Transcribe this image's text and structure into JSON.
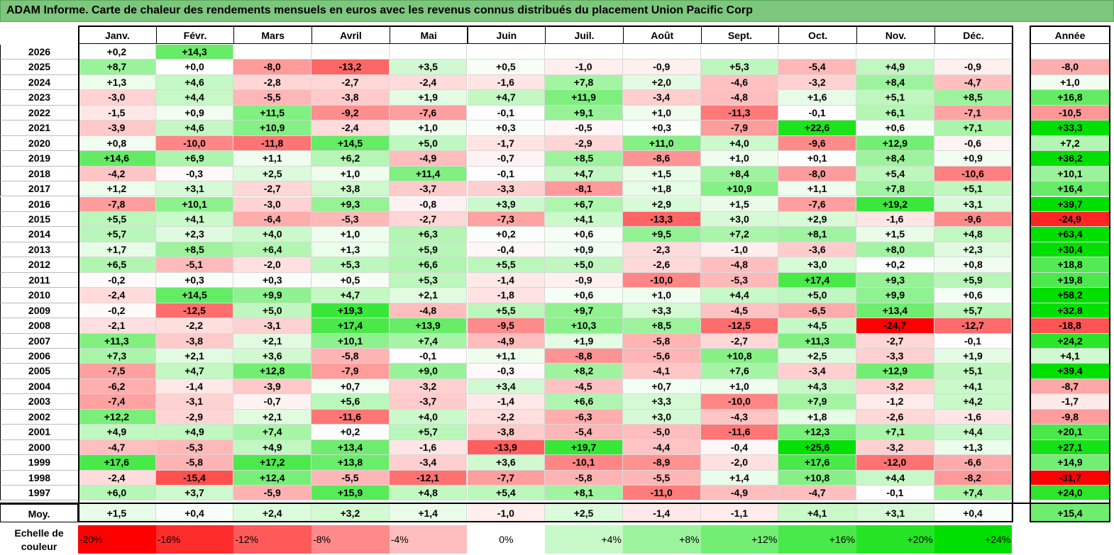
{
  "title": "ADAM Informe. Carte de chaleur des rendements mensuels en euros avec les revenus connus distribués du placement Union Pacific Corp",
  "colors": {
    "neg_max": "#ff0000",
    "zero": "#ffffff",
    "pos_max": "#00e000",
    "title_bg": "#7dc67d"
  },
  "chart_data": {
    "type": "heatmap",
    "title": "ADAM Informe. Carte de chaleur des rendements mensuels en euros avec les revenus connus distribués du placement Union Pacific Corp",
    "months": [
      "Janv.",
      "Févr.",
      "Mars",
      "Avril",
      "Mai",
      "Juin",
      "Juil.",
      "Août",
      "Sept.",
      "Oct.",
      "Nov.",
      "Déc."
    ],
    "year_col_label": "Année",
    "rows": [
      {
        "year": "2026",
        "values": [
          "+0,2",
          "+14,3",
          "",
          "",
          "",
          "",
          "",
          "",
          "",
          "",
          "",
          ""
        ],
        "annual": ""
      },
      {
        "year": "2025",
        "values": [
          "+8,7",
          "+0,0",
          "-8,0",
          "-13,2",
          "+3,5",
          "+0,5",
          "-1,0",
          "-0,9",
          "+5,3",
          "-5,4",
          "+4,9",
          "-0,9"
        ],
        "annual": "-8,0"
      },
      {
        "year": "2024",
        "values": [
          "+1,3",
          "+4,6",
          "-2,8",
          "-2,7",
          "-2,4",
          "-1,6",
          "+7,8",
          "+2,0",
          "-4,6",
          "-3,2",
          "+8,4",
          "-4,7"
        ],
        "annual": "+1,0"
      },
      {
        "year": "2023",
        "values": [
          "-3,0",
          "+4,4",
          "-5,5",
          "-3,8",
          "+1,9",
          "+4,7",
          "+11,9",
          "-3,4",
          "-4,8",
          "+1,6",
          "+5,1",
          "+8,5"
        ],
        "annual": "+16,8"
      },
      {
        "year": "2022",
        "values": [
          "-1,5",
          "+0,9",
          "+11,5",
          "-9,2",
          "-7,6",
          "-0,1",
          "+9,1",
          "+1,0",
          "-11,3",
          "-0,1",
          "+6,1",
          "-7,1"
        ],
        "annual": "-10,5"
      },
      {
        "year": "2021",
        "values": [
          "-3,9",
          "+4,6",
          "+10,9",
          "-2,4",
          "+1,0",
          "+0,3",
          "-0,5",
          "+0,3",
          "-7,9",
          "+22,6",
          "+0,6",
          "+7,1"
        ],
        "annual": "+33,3"
      },
      {
        "year": "2020",
        "values": [
          "+0,8",
          "-10,0",
          "-11,8",
          "+14,5",
          "+5,0",
          "-1,7",
          "-2,9",
          "+11,0",
          "+4,0",
          "-9,6",
          "+12,9",
          "-0,6"
        ],
        "annual": "+7,2"
      },
      {
        "year": "2019",
        "values": [
          "+14,6",
          "+6,9",
          "+1,1",
          "+6,2",
          "-4,9",
          "-0,7",
          "+8,5",
          "-8,6",
          "+1,0",
          "+0,1",
          "+8,4",
          "+0,9"
        ],
        "annual": "+36,2"
      },
      {
        "year": "2018",
        "values": [
          "-4,2",
          "-0,3",
          "+2,5",
          "+1,0",
          "+11,4",
          "-0,1",
          "+4,7",
          "+1,5",
          "+8,4",
          "-8,0",
          "+5,4",
          "-10,6"
        ],
        "annual": "+10,1"
      },
      {
        "year": "2017",
        "values": [
          "+1,2",
          "+3,1",
          "-2,7",
          "+3,8",
          "-3,7",
          "-3,3",
          "-8,1",
          "+1,8",
          "+10,9",
          "+1,1",
          "+7,8",
          "+5,1"
        ],
        "annual": "+16,4"
      },
      {
        "year": "2016",
        "values": [
          "-7,8",
          "+10,1",
          "-3,0",
          "+9,3",
          "-0,8",
          "+3,9",
          "+6,7",
          "+2,9",
          "+1,5",
          "-7,6",
          "+19,2",
          "+3,1"
        ],
        "annual": "+39,7"
      },
      {
        "year": "2015",
        "values": [
          "+5,5",
          "+4,1",
          "-6,4",
          "-5,3",
          "-2,7",
          "-7,3",
          "+4,1",
          "-13,3",
          "+3,0",
          "+2,9",
          "-1,6",
          "-9,6"
        ],
        "annual": "-24,9"
      },
      {
        "year": "2014",
        "values": [
          "+5,7",
          "+2,3",
          "+4,0",
          "+1,0",
          "+6,3",
          "+0,2",
          "+0,6",
          "+9,5",
          "+7,2",
          "+8,1",
          "+1,5",
          "+4,8"
        ],
        "annual": "+63,4"
      },
      {
        "year": "2013",
        "values": [
          "+1,7",
          "+8,5",
          "+6,4",
          "+1,3",
          "+5,9",
          "-0,4",
          "+0,9",
          "-2,3",
          "-1,0",
          "-3,6",
          "+8,0",
          "+2,3"
        ],
        "annual": "+30,4"
      },
      {
        "year": "2012",
        "values": [
          "+6,5",
          "-5,1",
          "-2,0",
          "+5,3",
          "+6,6",
          "+5,5",
          "+5,0",
          "-2,6",
          "-4,8",
          "+3,0",
          "+0,2",
          "+0,8"
        ],
        "annual": "+18,8"
      },
      {
        "year": "2011",
        "values": [
          "-0,2",
          "+0,3",
          "+0,3",
          "+0,5",
          "+5,3",
          "-1,4",
          "-0,9",
          "-10,0",
          "-5,3",
          "+17,4",
          "+9,3",
          "+5,9"
        ],
        "annual": "+19,8"
      },
      {
        "year": "2010",
        "values": [
          "-2,4",
          "+14,5",
          "+9,9",
          "+4,7",
          "+2,1",
          "-1,8",
          "+0,6",
          "+1,0",
          "+4,4",
          "+5,0",
          "+9,9",
          "+0,6"
        ],
        "annual": "+58,2"
      },
      {
        "year": "2009",
        "values": [
          "-0,2",
          "-12,5",
          "+5,0",
          "+19,3",
          "-4,8",
          "+5,5",
          "+9,7",
          "+3,3",
          "-4,5",
          "-6,5",
          "+13,4",
          "+5,7"
        ],
        "annual": "+32,8"
      },
      {
        "year": "2008",
        "values": [
          "-2,1",
          "-2,2",
          "-3,1",
          "+17,4",
          "+13,9",
          "-9,5",
          "+10,3",
          "+8,5",
          "-12,5",
          "+4,5",
          "-24,7",
          "-12,7"
        ],
        "annual": "-18,8"
      },
      {
        "year": "2007",
        "values": [
          "+11,3",
          "-3,8",
          "+2,1",
          "+10,1",
          "+7,4",
          "-4,9",
          "+1,9",
          "-5,8",
          "-2,7",
          "+11,3",
          "-2,7",
          "-0,1"
        ],
        "annual": "+24,2"
      },
      {
        "year": "2006",
        "values": [
          "+7,3",
          "+2,1",
          "+3,6",
          "-5,8",
          "-0,1",
          "+1,1",
          "-8,8",
          "-5,6",
          "+10,8",
          "+2,5",
          "-3,3",
          "+1,9"
        ],
        "annual": "+4,1"
      },
      {
        "year": "2005",
        "values": [
          "-7,5",
          "+4,7",
          "+12,8",
          "-7,9",
          "+9,0",
          "-0,3",
          "+8,2",
          "-4,1",
          "+7,6",
          "-3,4",
          "+12,9",
          "+5,1"
        ],
        "annual": "+39,4"
      },
      {
        "year": "2004",
        "values": [
          "-6,2",
          "-1,4",
          "-3,9",
          "+0,7",
          "-3,2",
          "+3,4",
          "-4,5",
          "+0,7",
          "+1,0",
          "+4,3",
          "-3,2",
          "+4,1"
        ],
        "annual": "-8,7"
      },
      {
        "year": "2003",
        "values": [
          "-7,4",
          "-3,1",
          "-0,7",
          "+5,6",
          "-3,7",
          "-1,4",
          "+6,6",
          "+3,3",
          "-10,0",
          "+7,9",
          "-1,2",
          "+4,2"
        ],
        "annual": "-1,7"
      },
      {
        "year": "2002",
        "values": [
          "+12,2",
          "-2,9",
          "+2,1",
          "-11,6",
          "+4,0",
          "-2,2",
          "-6,3",
          "+3,0",
          "-4,3",
          "+1,8",
          "-2,6",
          "-1,6"
        ],
        "annual": "-9,8"
      },
      {
        "year": "2001",
        "values": [
          "+4,9",
          "+4,9",
          "+7,4",
          "+0,2",
          "+5,7",
          "-3,8",
          "-5,4",
          "-5,0",
          "-11,6",
          "+12,3",
          "+7,1",
          "+4,4"
        ],
        "annual": "+20,1"
      },
      {
        "year": "2000",
        "values": [
          "-4,7",
          "-5,3",
          "+4,9",
          "+13,4",
          "-1,6",
          "-13,9",
          "+19,7",
          "-4,4",
          "-0,4",
          "+25,6",
          "-3,2",
          "+1,3"
        ],
        "annual": "+27,1"
      },
      {
        "year": "1999",
        "values": [
          "+17,6",
          "-5,8",
          "+17,2",
          "+13,8",
          "-3,4",
          "+3,6",
          "-10,1",
          "-8,9",
          "-2,0",
          "+17,6",
          "-12,0",
          "-6,6"
        ],
        "annual": "+14,9"
      },
      {
        "year": "1998",
        "values": [
          "-2,4",
          "-15,4",
          "+12,4",
          "-5,5",
          "-12,1",
          "-7,7",
          "-5,8",
          "-5,5",
          "+1,4",
          "+10,8",
          "+4,4",
          "-8,2"
        ],
        "annual": "-31,7"
      },
      {
        "year": "1997",
        "values": [
          "+6,0",
          "+3,7",
          "-5,9",
          "+15,9",
          "+4,8",
          "+5,4",
          "+8,1",
          "-11,0",
          "-4,9",
          "-4,7",
          "-0,1",
          "+7,4"
        ],
        "annual": "+24,0"
      }
    ],
    "average": {
      "label": "Moy.",
      "values": [
        "+1,5",
        "+0,4",
        "+2,4",
        "+3,2",
        "+1,4",
        "-1,0",
        "+2,5",
        "-1,4",
        "-1,1",
        "+4,1",
        "+3,1",
        "+0,4"
      ],
      "annual": "+15,4"
    },
    "scale": {
      "label_line1": "Echelle de",
      "label_line2": "couleur",
      "stops": [
        "-20%",
        "-16%",
        "-12%",
        "-8%",
        "-4%",
        "0%",
        "+4%",
        "+8%",
        "+12%",
        "+16%",
        "+20%",
        "+24%"
      ]
    }
  }
}
